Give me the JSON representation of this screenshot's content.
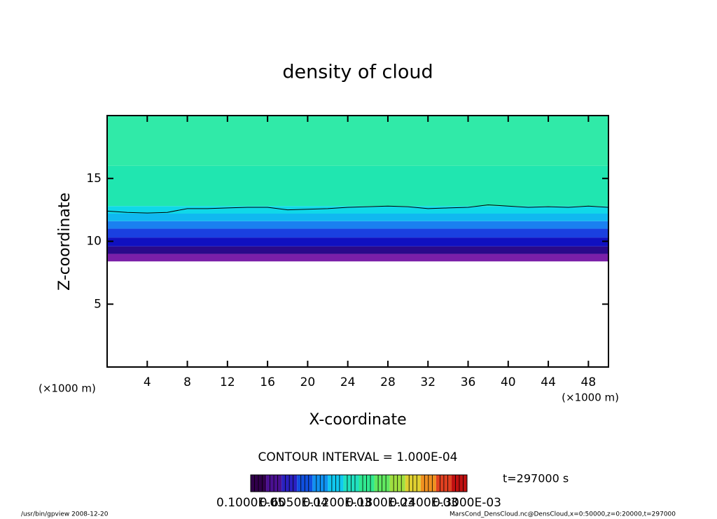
{
  "chart_data": {
    "type": "contour",
    "title": "density of cloud",
    "x_label": "X-coordinate",
    "y_label": "Z-coordinate",
    "x_unit": "(×1000 m)",
    "y_unit": "(×1000 m)",
    "xlim": [
      0,
      50
    ],
    "xticks": [
      4,
      8,
      12,
      16,
      20,
      24,
      28,
      32,
      36,
      40,
      44,
      48
    ],
    "ylim": [
      0,
      20
    ],
    "yticks": [
      5,
      10,
      15
    ],
    "bands": [
      {
        "z0": 8.4,
        "z1": 9.0,
        "color": "#7a1fa8"
      },
      {
        "z0": 9.0,
        "z1": 9.6,
        "color": "#2a0a8a"
      },
      {
        "z0": 9.6,
        "z1": 10.3,
        "color": "#1010c0"
      },
      {
        "z0": 10.3,
        "z1": 11.0,
        "color": "#1a40e0"
      },
      {
        "z0": 11.0,
        "z1": 11.6,
        "color": "#1a80f0"
      },
      {
        "z0": 11.6,
        "z1": 12.2,
        "color": "#10b8f0"
      },
      {
        "z0": 12.2,
        "z1": 12.8,
        "color": "#10d8e8"
      },
      {
        "z0": 12.8,
        "z1": 16.0,
        "color": "#20e6b0"
      },
      {
        "z0": 16.0,
        "z1": 20.0,
        "color": "#30eaa8"
      }
    ],
    "contour_line": {
      "color": "#000000",
      "x": [
        0,
        2,
        4,
        6,
        8,
        10,
        12,
        14,
        16,
        18,
        20,
        22,
        24,
        26,
        28,
        30,
        32,
        34,
        36,
        38,
        40,
        42,
        44,
        46,
        48,
        50
      ],
      "y": [
        12.4,
        12.3,
        12.25,
        12.3,
        12.6,
        12.6,
        12.65,
        12.7,
        12.7,
        12.5,
        12.55,
        12.6,
        12.7,
        12.75,
        12.8,
        12.75,
        12.6,
        12.65,
        12.7,
        12.9,
        12.8,
        12.7,
        12.75,
        12.7,
        12.8,
        12.7
      ]
    },
    "contour_interval": "CONTOUR INTERVAL = 1.000E-04",
    "time_label": "t=297000 s",
    "colorbar": {
      "colors": [
        "#30004a",
        "#4a1090",
        "#2a20c0",
        "#1050e0",
        "#1090f0",
        "#10c8f0",
        "#20e0c0",
        "#30e890",
        "#60e860",
        "#a0e040",
        "#e0d030",
        "#f09020",
        "#e04020",
        "#c01010"
      ],
      "labels": [
        "0.1000E-05",
        "0.6050E-04",
        "0.1200E-03",
        "0.1800E-03",
        "0.2400E-03",
        "0.3000E-03"
      ]
    },
    "footer_left": "/usr/bin/gpview  2008-12-20",
    "footer_right": "MarsCond_DensCloud.nc@DensCloud,x=0:50000,z=0:20000,t=297000"
  }
}
